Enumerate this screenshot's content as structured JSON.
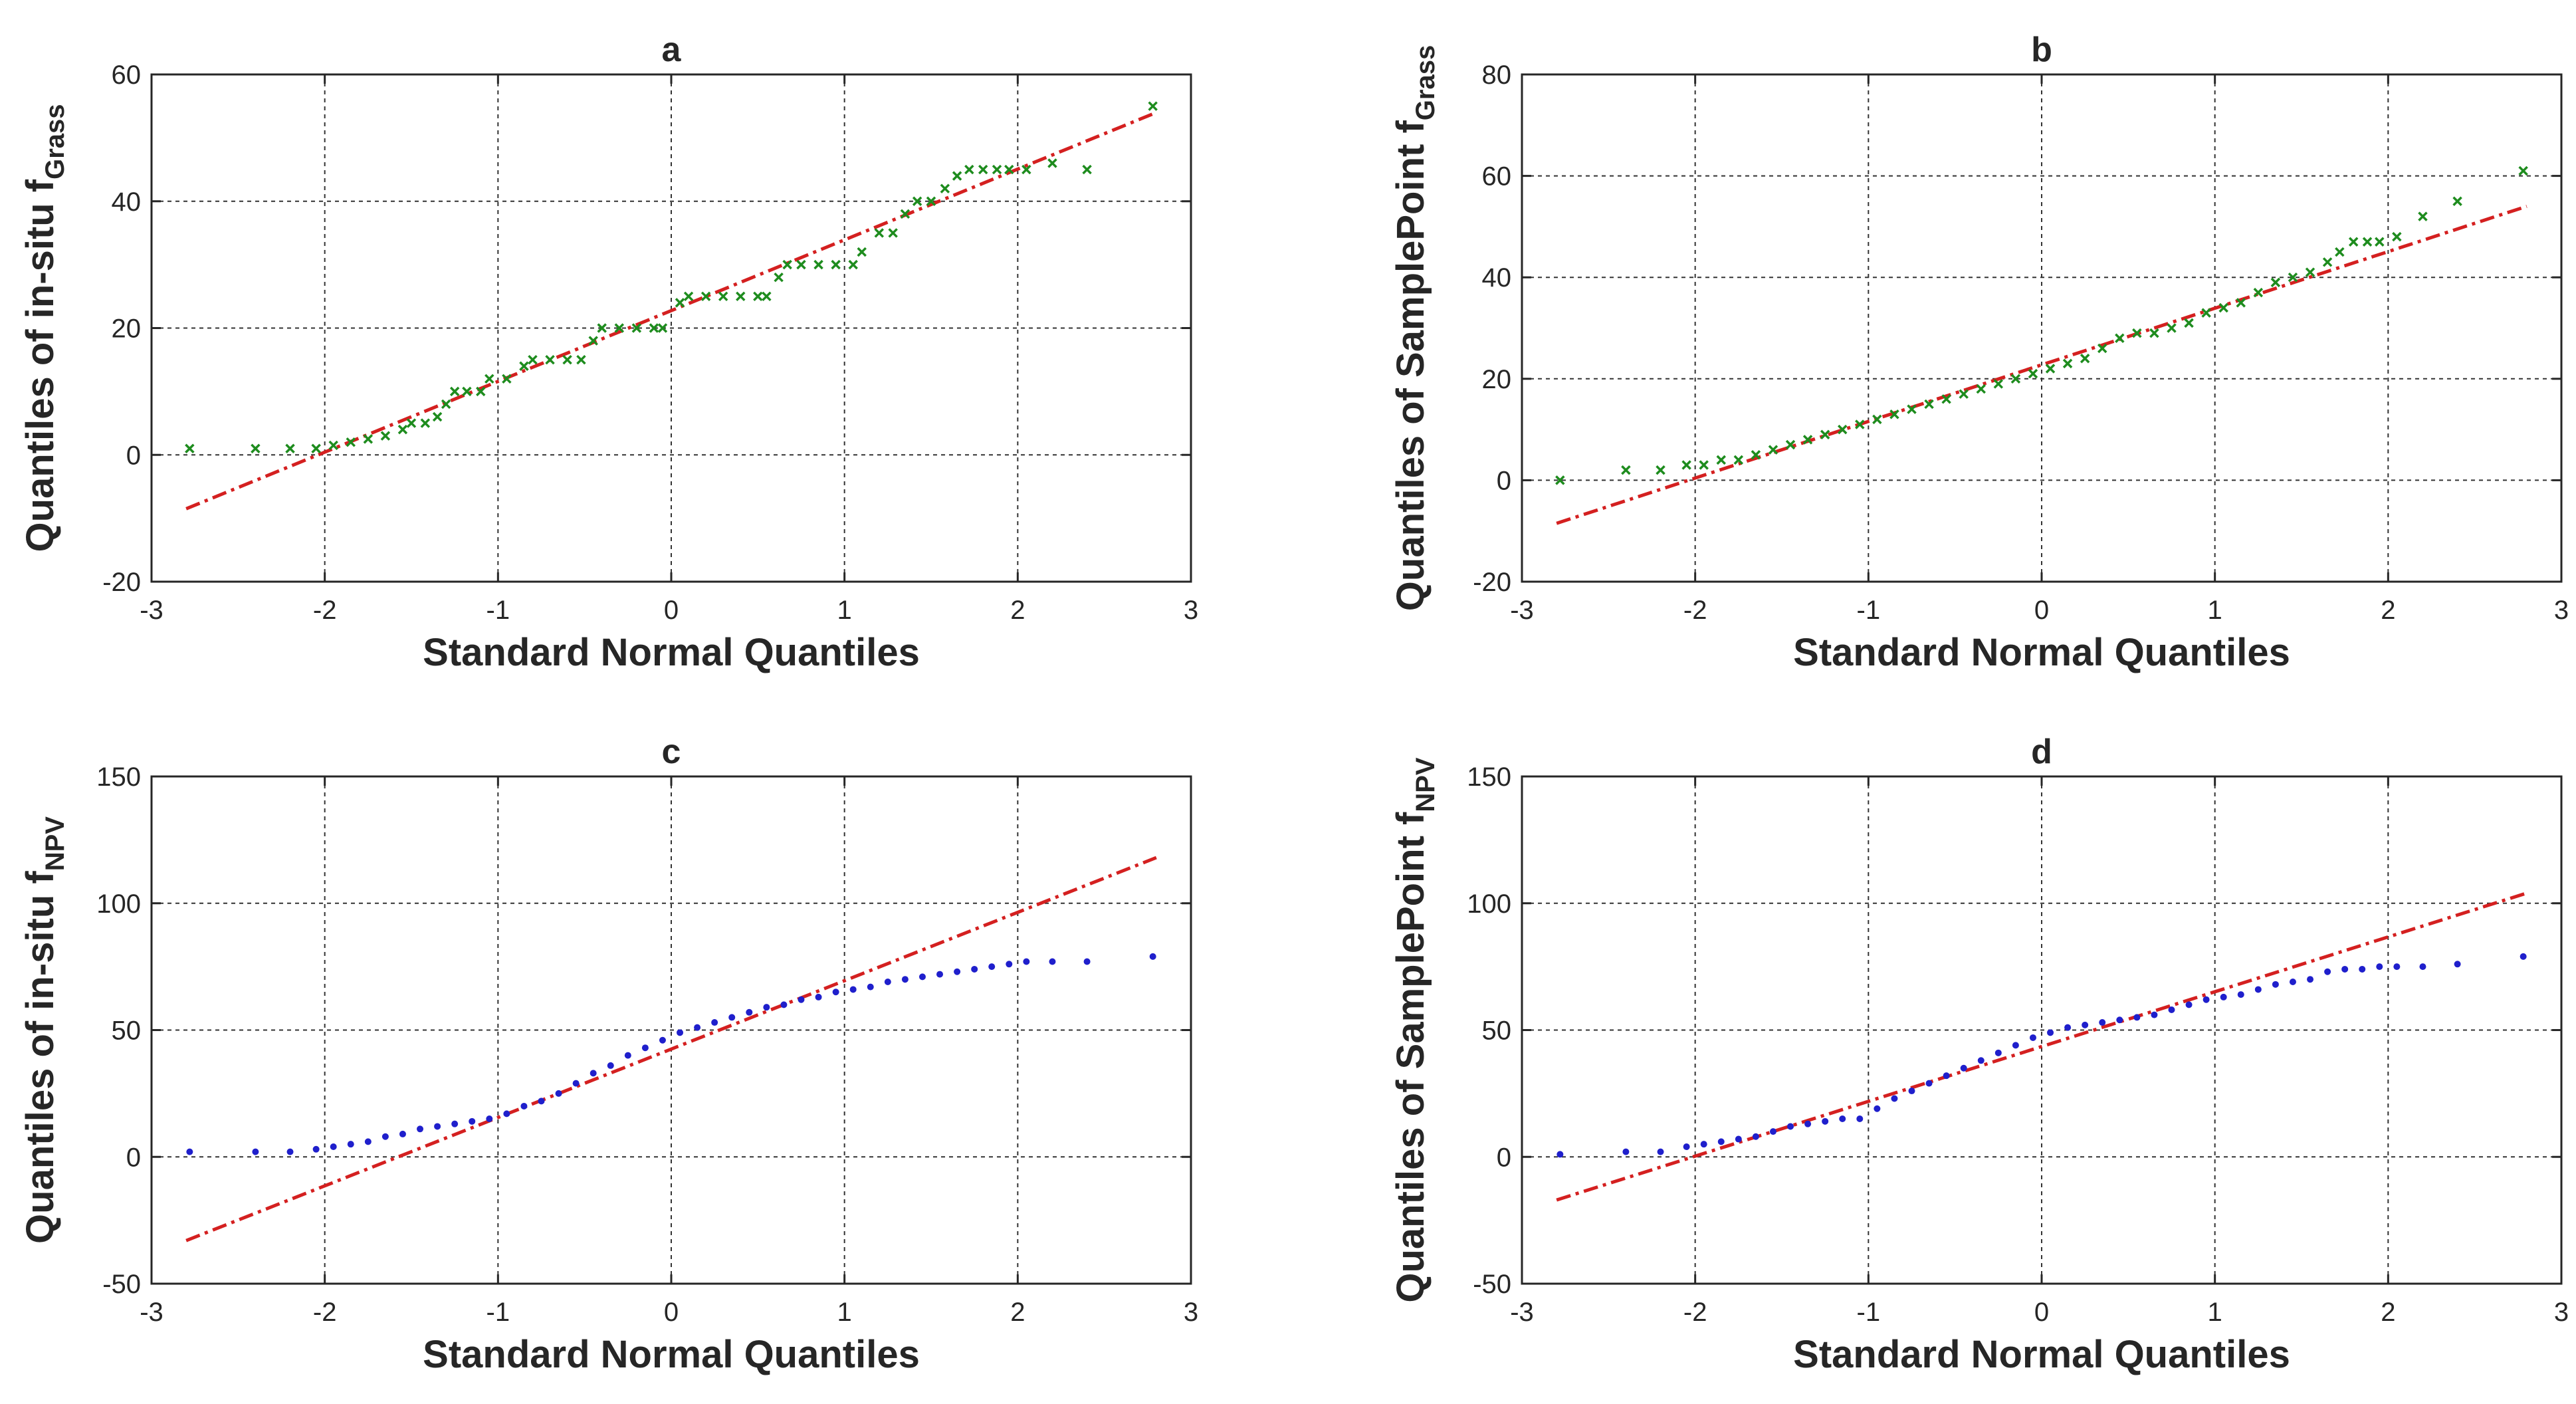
{
  "figure": {
    "colors": {
      "grass": "#1e8c1e",
      "npv": "#1f1fcc",
      "ref": "#d42020",
      "axis": "#262626",
      "grid": "#333333"
    }
  },
  "chart_data": [
    {
      "type": "scatter",
      "title": "a",
      "xlabel": "Standard Normal Quantiles",
      "ylabel_main": "Quantiles of in-situ f",
      "ylabel_sub": "Grass",
      "xlim": [
        -3,
        3
      ],
      "ylim": [
        -20,
        60
      ],
      "xticks": [
        -3,
        -2,
        -1,
        0,
        1,
        2,
        3
      ],
      "yticks": [
        -20,
        0,
        20,
        40,
        60
      ],
      "grid": true,
      "marker": "x",
      "ref_line": {
        "x": [
          -2.8,
          2.8
        ],
        "y": [
          -8.5,
          54
        ],
        "style": "dash-dot"
      },
      "points": [
        [
          -2.78,
          1
        ],
        [
          -2.4,
          1
        ],
        [
          -2.2,
          1
        ],
        [
          -2.05,
          1
        ],
        [
          -1.95,
          1.5
        ],
        [
          -1.85,
          2
        ],
        [
          -1.75,
          2.5
        ],
        [
          -1.65,
          3
        ],
        [
          -1.55,
          4
        ],
        [
          -1.5,
          5
        ],
        [
          -1.42,
          5
        ],
        [
          -1.35,
          6
        ],
        [
          -1.3,
          8
        ],
        [
          -1.25,
          10
        ],
        [
          -1.18,
          10
        ],
        [
          -1.1,
          10
        ],
        [
          -1.05,
          12
        ],
        [
          -0.95,
          12
        ],
        [
          -0.85,
          14
        ],
        [
          -0.8,
          15
        ],
        [
          -0.7,
          15
        ],
        [
          -0.6,
          15
        ],
        [
          -0.52,
          15
        ],
        [
          -0.45,
          18
        ],
        [
          -0.4,
          20
        ],
        [
          -0.3,
          20
        ],
        [
          -0.2,
          20
        ],
        [
          -0.1,
          20
        ],
        [
          -0.05,
          20
        ],
        [
          0.05,
          24
        ],
        [
          0.1,
          25
        ],
        [
          0.2,
          25
        ],
        [
          0.3,
          25
        ],
        [
          0.4,
          25
        ],
        [
          0.5,
          25
        ],
        [
          0.55,
          25
        ],
        [
          0.62,
          28
        ],
        [
          0.67,
          30
        ],
        [
          0.75,
          30
        ],
        [
          0.85,
          30
        ],
        [
          0.95,
          30
        ],
        [
          1.05,
          30
        ],
        [
          1.1,
          32
        ],
        [
          1.2,
          35
        ],
        [
          1.28,
          35
        ],
        [
          1.35,
          38
        ],
        [
          1.42,
          40
        ],
        [
          1.5,
          40
        ],
        [
          1.58,
          42
        ],
        [
          1.65,
          44
        ],
        [
          1.72,
          45
        ],
        [
          1.8,
          45
        ],
        [
          1.88,
          45
        ],
        [
          1.95,
          45
        ],
        [
          2.05,
          45
        ],
        [
          2.2,
          46
        ],
        [
          2.4,
          45
        ],
        [
          2.78,
          55
        ]
      ]
    },
    {
      "type": "scatter",
      "title": "b",
      "xlabel": "Standard Normal Quantiles",
      "ylabel_main": "Quantiles of SamplePoint f",
      "ylabel_sub": "Grass",
      "xlim": [
        -3,
        3
      ],
      "ylim": [
        -20,
        80
      ],
      "xticks": [
        -3,
        -2,
        -1,
        0,
        1,
        2,
        3
      ],
      "yticks": [
        -20,
        0,
        20,
        40,
        60,
        80
      ],
      "grid": true,
      "marker": "x",
      "ref_line": {
        "x": [
          -2.8,
          2.8
        ],
        "y": [
          -8.5,
          54
        ],
        "style": "dash-dot"
      },
      "points": [
        [
          -2.78,
          0
        ],
        [
          -2.4,
          2
        ],
        [
          -2.2,
          2
        ],
        [
          -2.05,
          3
        ],
        [
          -1.95,
          3
        ],
        [
          -1.85,
          4
        ],
        [
          -1.75,
          4
        ],
        [
          -1.65,
          5
        ],
        [
          -1.55,
          6
        ],
        [
          -1.45,
          7
        ],
        [
          -1.35,
          8
        ],
        [
          -1.25,
          9
        ],
        [
          -1.15,
          10
        ],
        [
          -1.05,
          11
        ],
        [
          -0.95,
          12
        ],
        [
          -0.85,
          13
        ],
        [
          -0.75,
          14
        ],
        [
          -0.65,
          15
        ],
        [
          -0.55,
          16
        ],
        [
          -0.45,
          17
        ],
        [
          -0.35,
          18
        ],
        [
          -0.25,
          19
        ],
        [
          -0.15,
          20
        ],
        [
          -0.05,
          21
        ],
        [
          0.05,
          22
        ],
        [
          0.15,
          23
        ],
        [
          0.25,
          24
        ],
        [
          0.35,
          26
        ],
        [
          0.45,
          28
        ],
        [
          0.55,
          29
        ],
        [
          0.65,
          29
        ],
        [
          0.75,
          30
        ],
        [
          0.85,
          31
        ],
        [
          0.95,
          33
        ],
        [
          1.05,
          34
        ],
        [
          1.15,
          35
        ],
        [
          1.25,
          37
        ],
        [
          1.35,
          39
        ],
        [
          1.45,
          40
        ],
        [
          1.55,
          41
        ],
        [
          1.65,
          43
        ],
        [
          1.72,
          45
        ],
        [
          1.8,
          47
        ],
        [
          1.88,
          47
        ],
        [
          1.95,
          47
        ],
        [
          2.05,
          48
        ],
        [
          2.2,
          52
        ],
        [
          2.4,
          55
        ],
        [
          2.78,
          61
        ]
      ]
    },
    {
      "type": "scatter",
      "title": "c",
      "xlabel": "Standard Normal Quantiles",
      "ylabel_main": "Quantiles of in-situ f",
      "ylabel_sub": "NPV",
      "xlim": [
        -3,
        3
      ],
      "ylim": [
        -50,
        150
      ],
      "xticks": [
        -3,
        -2,
        -1,
        0,
        1,
        2,
        3
      ],
      "yticks": [
        -50,
        0,
        50,
        100,
        150
      ],
      "grid": true,
      "marker": "dot",
      "ref_line": {
        "x": [
          -2.8,
          2.8
        ],
        "y": [
          -33,
          118
        ],
        "style": "dash-dot"
      },
      "points": [
        [
          -2.78,
          2
        ],
        [
          -2.4,
          2
        ],
        [
          -2.2,
          2
        ],
        [
          -2.05,
          3
        ],
        [
          -1.95,
          4
        ],
        [
          -1.85,
          5
        ],
        [
          -1.75,
          6
        ],
        [
          -1.65,
          8
        ],
        [
          -1.55,
          9
        ],
        [
          -1.45,
          11
        ],
        [
          -1.35,
          12
        ],
        [
          -1.25,
          13
        ],
        [
          -1.15,
          14
        ],
        [
          -1.05,
          15
        ],
        [
          -0.95,
          17
        ],
        [
          -0.85,
          20
        ],
        [
          -0.75,
          22
        ],
        [
          -0.65,
          25
        ],
        [
          -0.55,
          29
        ],
        [
          -0.45,
          33
        ],
        [
          -0.35,
          36
        ],
        [
          -0.25,
          40
        ],
        [
          -0.15,
          43
        ],
        [
          -0.05,
          46
        ],
        [
          0.05,
          49
        ],
        [
          0.15,
          51
        ],
        [
          0.25,
          53
        ],
        [
          0.35,
          55
        ],
        [
          0.45,
          57
        ],
        [
          0.55,
          59
        ],
        [
          0.65,
          60
        ],
        [
          0.75,
          62
        ],
        [
          0.85,
          63
        ],
        [
          0.95,
          65
        ],
        [
          1.05,
          66
        ],
        [
          1.15,
          67
        ],
        [
          1.25,
          69
        ],
        [
          1.35,
          70
        ],
        [
          1.45,
          71
        ],
        [
          1.55,
          72
        ],
        [
          1.65,
          73
        ],
        [
          1.75,
          74
        ],
        [
          1.85,
          75
        ],
        [
          1.95,
          76
        ],
        [
          2.05,
          77
        ],
        [
          2.2,
          77
        ],
        [
          2.4,
          77
        ],
        [
          2.78,
          79
        ]
      ]
    },
    {
      "type": "scatter",
      "title": "d",
      "xlabel": "Standard Normal Quantiles",
      "ylabel_main": "Quantiles of SamplePoint f",
      "ylabel_sub": "NPV",
      "xlim": [
        -3,
        3
      ],
      "ylim": [
        -50,
        150
      ],
      "xticks": [
        -3,
        -2,
        -1,
        0,
        1,
        2,
        3
      ],
      "yticks": [
        -50,
        0,
        50,
        100,
        150
      ],
      "grid": true,
      "marker": "dot",
      "ref_line": {
        "x": [
          -2.8,
          2.8
        ],
        "y": [
          -17,
          104
        ],
        "style": "dash-dot"
      },
      "points": [
        [
          -2.78,
          1
        ],
        [
          -2.4,
          2
        ],
        [
          -2.2,
          2
        ],
        [
          -2.05,
          4
        ],
        [
          -1.95,
          5
        ],
        [
          -1.85,
          6
        ],
        [
          -1.75,
          7
        ],
        [
          -1.65,
          8
        ],
        [
          -1.55,
          10
        ],
        [
          -1.45,
          12
        ],
        [
          -1.35,
          13
        ],
        [
          -1.25,
          14
        ],
        [
          -1.15,
          15
        ],
        [
          -1.05,
          15
        ],
        [
          -0.95,
          19
        ],
        [
          -0.85,
          23
        ],
        [
          -0.75,
          26
        ],
        [
          -0.65,
          29
        ],
        [
          -0.55,
          32
        ],
        [
          -0.45,
          35
        ],
        [
          -0.35,
          38
        ],
        [
          -0.25,
          41
        ],
        [
          -0.15,
          44
        ],
        [
          -0.05,
          47
        ],
        [
          0.05,
          49
        ],
        [
          0.15,
          51
        ],
        [
          0.25,
          52
        ],
        [
          0.35,
          53
        ],
        [
          0.45,
          54
        ],
        [
          0.55,
          55
        ],
        [
          0.65,
          56
        ],
        [
          0.75,
          58
        ],
        [
          0.85,
          60
        ],
        [
          0.95,
          62
        ],
        [
          1.05,
          63
        ],
        [
          1.15,
          64
        ],
        [
          1.25,
          66
        ],
        [
          1.35,
          68
        ],
        [
          1.45,
          69
        ],
        [
          1.55,
          70
        ],
        [
          1.65,
          73
        ],
        [
          1.75,
          74
        ],
        [
          1.85,
          74
        ],
        [
          1.95,
          75
        ],
        [
          2.05,
          75
        ],
        [
          2.2,
          75
        ],
        [
          2.4,
          76
        ],
        [
          2.78,
          79
        ]
      ]
    }
  ]
}
